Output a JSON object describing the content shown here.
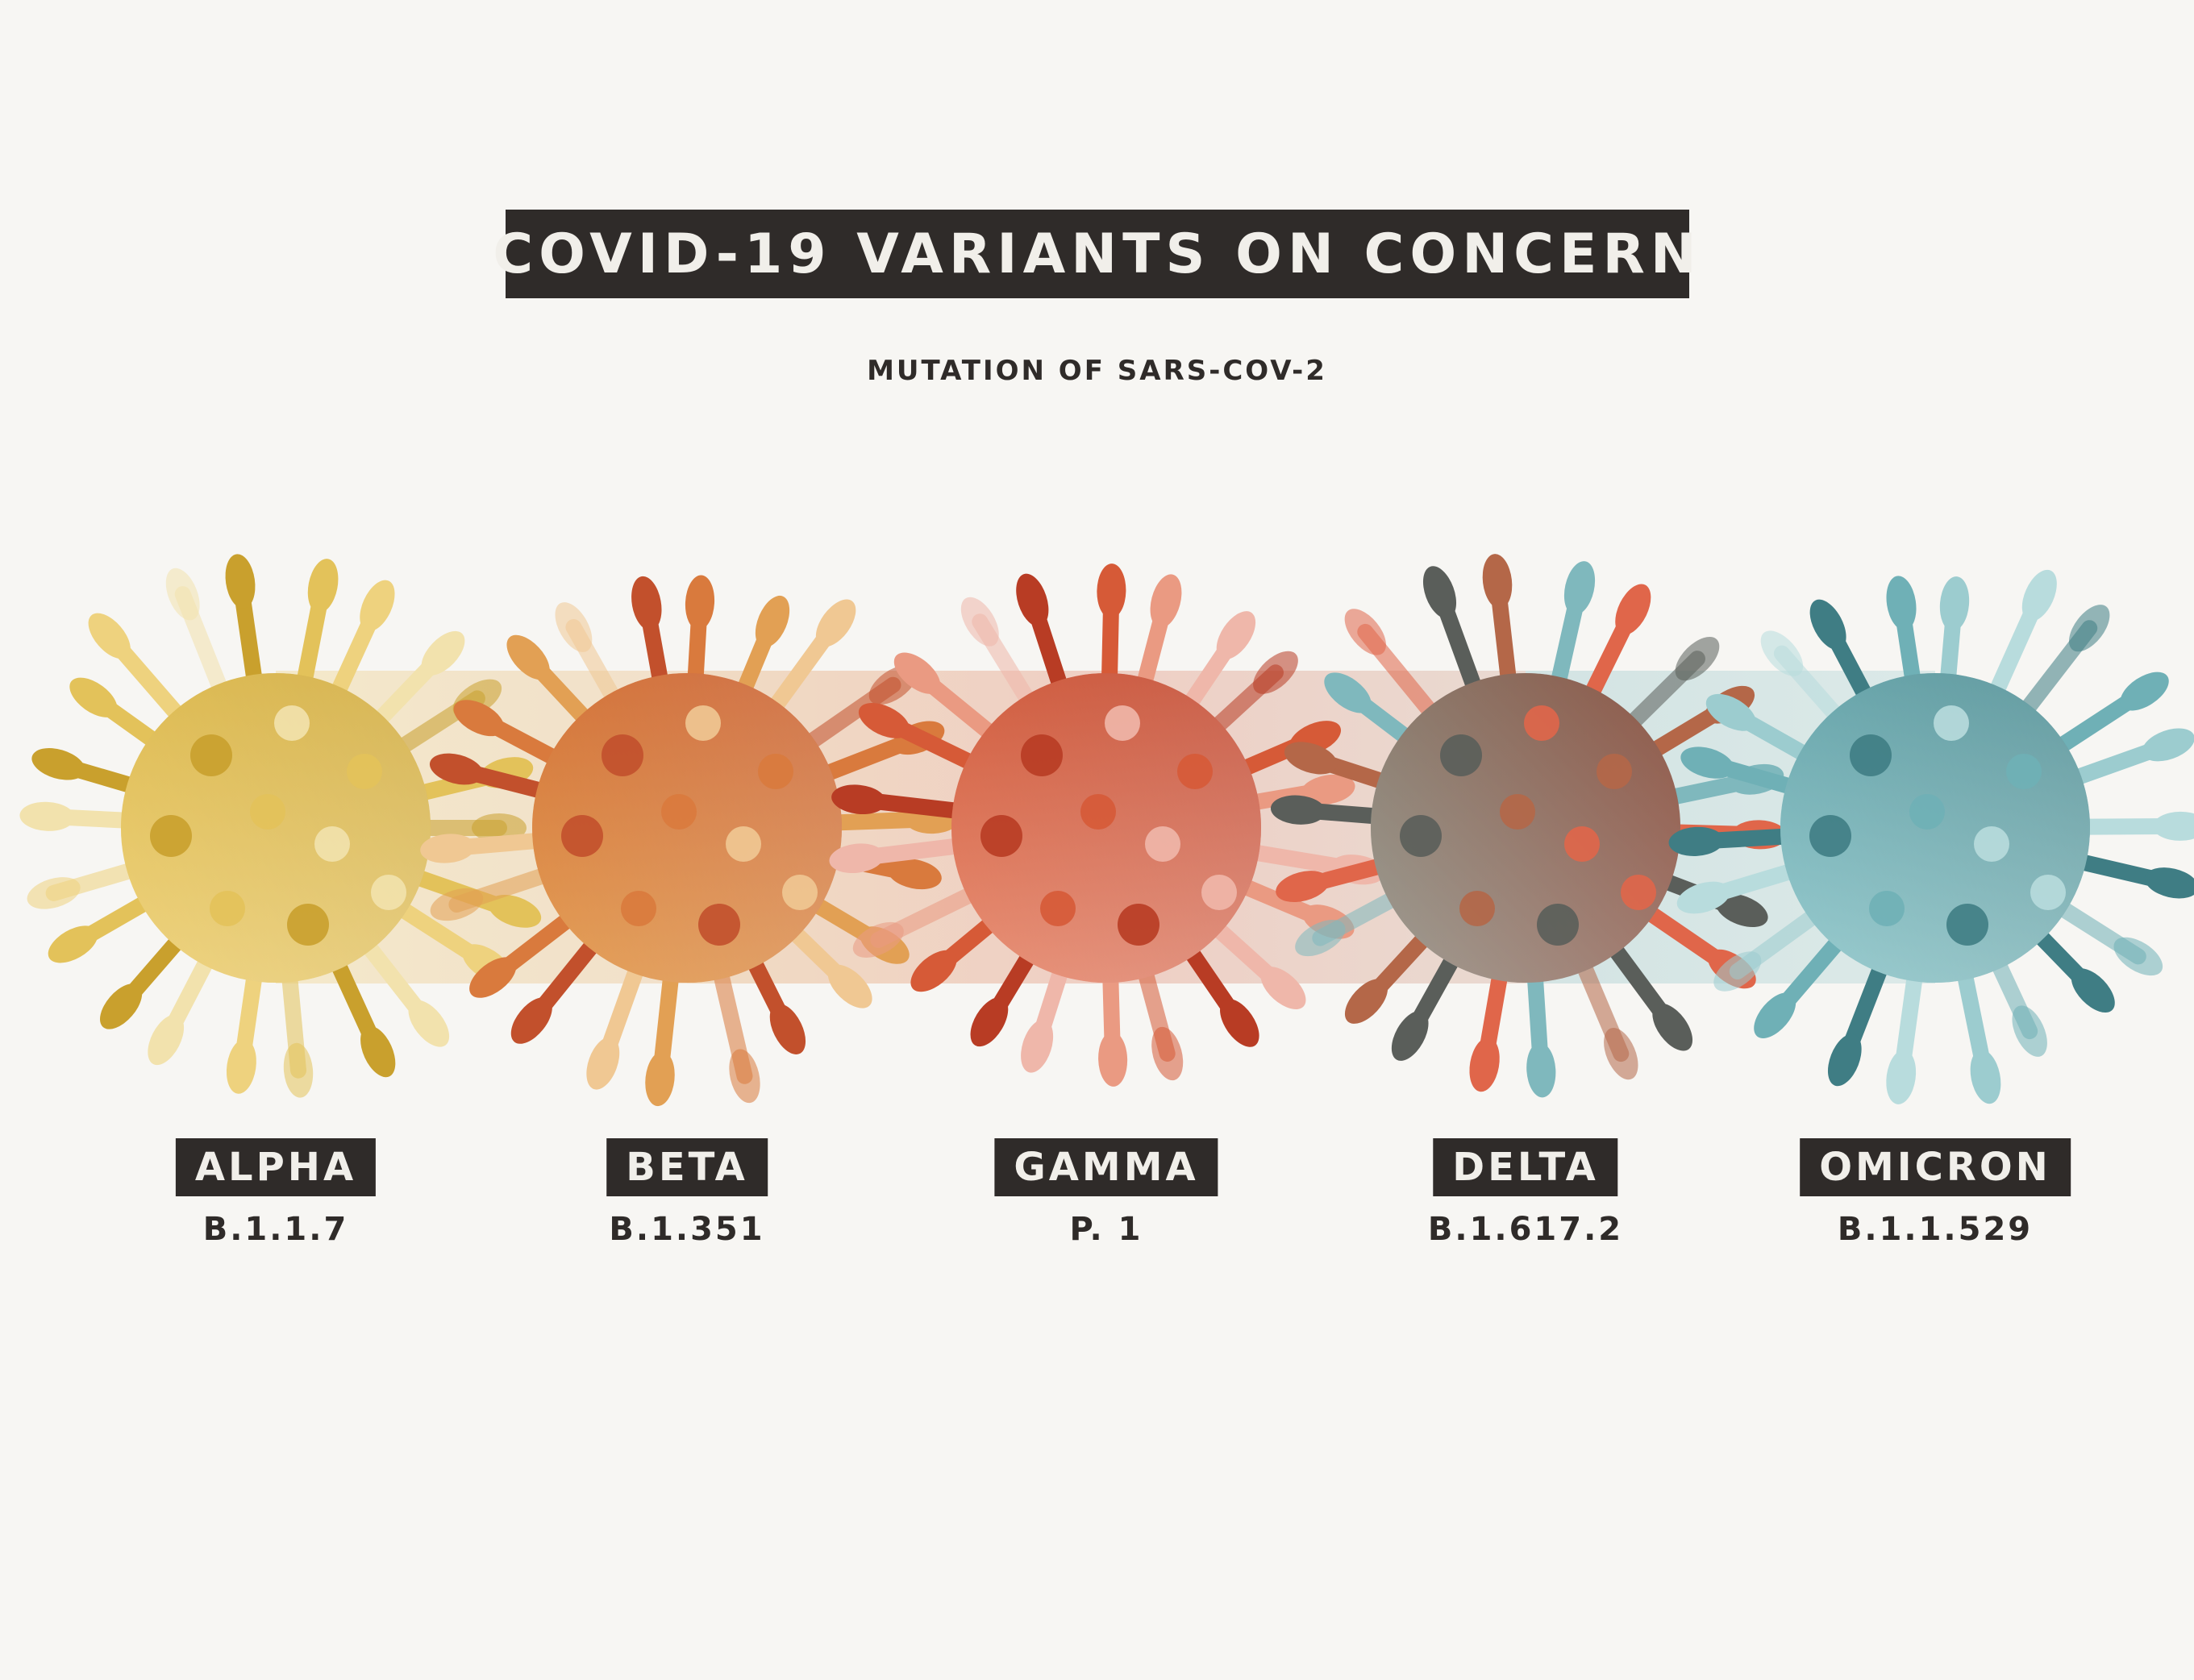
{
  "title": "COVID-19 VARIANTS ON CONCERN",
  "subtitle": "MUTATION OF SARS-COV-2",
  "variants": [
    {
      "name": "ALPHA",
      "lineage": "B.1.1.7",
      "colors": {
        "light": "#eed27e",
        "mid": "#e3c25a",
        "dark": "#c9a02d",
        "pale": "#f2e2ad"
      }
    },
    {
      "name": "BETA",
      "lineage": "B.1.351",
      "colors": {
        "light": "#e2a054",
        "mid": "#d97a3d",
        "dark": "#c2502c",
        "pale": "#f0c893"
      }
    },
    {
      "name": "GAMMA",
      "lineage": "P. 1",
      "colors": {
        "light": "#ea9a82",
        "mid": "#d65a37",
        "dark": "#b83c24",
        "pale": "#efb7aa"
      }
    },
    {
      "name": "DELTA",
      "lineage": "B.1.617.2",
      "colors": {
        "light": "#7fb8bd",
        "mid": "#b46748",
        "dark": "#5a5e5a",
        "pale": "#e0664a"
      }
    },
    {
      "name": "OMICRON",
      "lineage": "B.1.1.529",
      "colors": {
        "light": "#9ccccf",
        "mid": "#6fb0b6",
        "dark": "#3f7d84",
        "pale": "#b8dcdd"
      }
    }
  ]
}
